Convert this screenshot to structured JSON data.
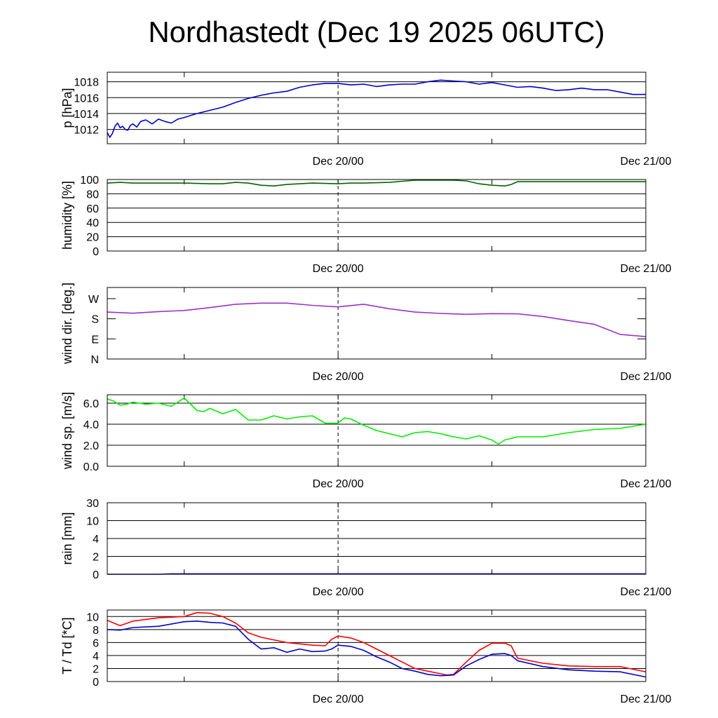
{
  "title": "Nordhastedt (Dec 19 2025 06UTC)",
  "x_axis": {
    "start": "Dec 19 06UTC",
    "end": "Dec 21/00",
    "marker": "Dec 20/00",
    "tick_labels": [
      {
        "label": "Dec 20/00",
        "hours": 18
      },
      {
        "label": "Dec 21/00",
        "hours": 42
      }
    ],
    "minor_tick_hours": [
      6,
      18,
      30,
      42
    ]
  },
  "chart_data": [
    {
      "type": "line",
      "ylabel": "p [hPa]",
      "ylim": [
        1010.2,
        1019.2
      ],
      "y_ticks": [
        1012,
        1014,
        1016,
        1018
      ],
      "grid": true,
      "series": [
        {
          "color": "#0000cc",
          "x": [
            0,
            0.2,
            0.4,
            0.6,
            0.8,
            1.0,
            1.2,
            1.4,
            1.6,
            1.8,
            2.0,
            2.3,
            2.6,
            3.0,
            3.5,
            4.0,
            4.5,
            5.0,
            5.5,
            6.0,
            7.0,
            8.0,
            9.0,
            10.0,
            11.0,
            12.0,
            13.0,
            14.0,
            15.0,
            16.0,
            17.0,
            18.0,
            19.0,
            20.0,
            21.0,
            22.0,
            23.0,
            24.0,
            25.0,
            26.0,
            27.0,
            28.0,
            29.0,
            30.0,
            31.0,
            32.0,
            33.0,
            34.0,
            35.0,
            36.0,
            37.0,
            38.0,
            39.0,
            40.0,
            41.0,
            42.0
          ],
          "values": [
            1011.6,
            1011.0,
            1011.5,
            1012.4,
            1012.8,
            1012.2,
            1012.4,
            1012.0,
            1011.9,
            1012.5,
            1012.7,
            1012.3,
            1013.0,
            1013.2,
            1012.7,
            1013.3,
            1013.0,
            1012.8,
            1013.3,
            1013.5,
            1014.0,
            1014.4,
            1014.8,
            1015.4,
            1015.9,
            1016.3,
            1016.6,
            1016.8,
            1017.3,
            1017.6,
            1017.8,
            1017.8,
            1017.6,
            1017.7,
            1017.4,
            1017.6,
            1017.7,
            1017.7,
            1018.0,
            1018.2,
            1018.1,
            1018.0,
            1017.7,
            1017.9,
            1017.6,
            1017.3,
            1017.4,
            1017.2,
            1016.9,
            1017.0,
            1017.2,
            1017.0,
            1017.0,
            1016.7,
            1016.4,
            1016.4
          ]
        }
      ]
    },
    {
      "type": "line",
      "ylabel": "humidity [%]",
      "ylim": [
        0,
        100
      ],
      "y_ticks": [
        0,
        20,
        40,
        60,
        80,
        100
      ],
      "grid": true,
      "series": [
        {
          "color": "#006600",
          "x": [
            0,
            1.0,
            2.0,
            4.0,
            6.0,
            8.0,
            9.0,
            10.0,
            11.0,
            12.0,
            13.0,
            14.0,
            16.0,
            18.0,
            19.0,
            20.0,
            22.0,
            24.0,
            25.0,
            26.0,
            27.0,
            28.0,
            29.0,
            30.0,
            31.0,
            31.5,
            32.0,
            34.0,
            36.0,
            38.0,
            40.0,
            42.0
          ],
          "values": [
            95,
            96,
            95,
            95,
            95,
            94,
            94,
            96,
            95,
            92,
            91,
            93,
            95,
            94,
            95,
            95,
            96,
            99,
            99,
            99,
            99,
            98,
            94,
            92,
            91,
            93,
            97,
            97,
            97,
            97,
            97,
            97
          ]
        }
      ]
    },
    {
      "type": "line",
      "ylabel": "wind dir. [deg.]",
      "ylim": [
        0,
        320
      ],
      "y_ticks": [
        0,
        90,
        180,
        270
      ],
      "y_tick_labels": [
        "N",
        "E",
        "S",
        "W"
      ],
      "grid": false,
      "series": [
        {
          "color": "#9933cc",
          "x": [
            0,
            2.0,
            4.0,
            6.0,
            8.0,
            10.0,
            12.0,
            14.0,
            16.0,
            18.0,
            20.0,
            22.0,
            24.0,
            26.0,
            28.0,
            30.0,
            32.0,
            34.0,
            36.0,
            38.0,
            40.0,
            42.0
          ],
          "values": [
            210,
            205,
            212,
            217,
            230,
            245,
            250,
            250,
            240,
            233,
            245,
            225,
            210,
            204,
            200,
            203,
            202,
            190,
            172,
            155,
            110,
            100
          ]
        }
      ]
    },
    {
      "type": "line",
      "ylabel": "wind sp. [m/s]",
      "ylim": [
        0,
        6.8
      ],
      "y_ticks": [
        0.0,
        2.0,
        4.0,
        6.0
      ],
      "grid": true,
      "series": [
        {
          "color": "#00ee00",
          "x": [
            0,
            0.5,
            1.0,
            1.5,
            2.0,
            3.0,
            4.0,
            5.0,
            5.5,
            6.0,
            7.0,
            7.5,
            8.0,
            9.0,
            10.0,
            11.0,
            12.0,
            13.0,
            14.0,
            15.0,
            16.0,
            17.0,
            18.0,
            18.5,
            19.0,
            20.0,
            21.0,
            22.0,
            23.0,
            24.0,
            25.0,
            26.0,
            27.0,
            28.0,
            29.0,
            30.0,
            30.5,
            31.0,
            32.0,
            34.0,
            36.0,
            38.0,
            40.0,
            42.0
          ],
          "values": [
            6.4,
            6.2,
            5.8,
            5.9,
            6.1,
            5.9,
            6.0,
            5.7,
            6.1,
            6.5,
            5.3,
            5.2,
            5.5,
            5.0,
            5.4,
            4.4,
            4.4,
            4.8,
            4.5,
            4.7,
            4.8,
            4.1,
            4.1,
            4.6,
            4.5,
            3.9,
            3.4,
            3.1,
            2.8,
            3.2,
            3.3,
            3.1,
            2.8,
            2.6,
            2.9,
            2.5,
            2.1,
            2.5,
            2.8,
            2.8,
            3.2,
            3.5,
            3.6,
            4.0
          ]
        }
      ]
    },
    {
      "type": "area",
      "ylabel": "rain [mm]",
      "scale": "piecewise",
      "ylim": [
        0,
        30
      ],
      "y_ticks": [
        0,
        2,
        4,
        10,
        30
      ],
      "grid": true,
      "series": [
        {
          "color": "#0000cc",
          "x": [
            0,
            4.0,
            5.0,
            42.0
          ],
          "values": [
            0.0,
            0.0,
            0.05,
            0.05
          ]
        }
      ]
    },
    {
      "type": "line",
      "ylabel": "T / Td [*C]",
      "ylim": [
        0,
        11
      ],
      "y_ticks": [
        0,
        2,
        4,
        6,
        8,
        10
      ],
      "grid": true,
      "series": [
        {
          "color": "#ff0000",
          "x": [
            0,
            1.0,
            2.0,
            4.0,
            6.0,
            7.0,
            8.0,
            9.0,
            10.0,
            11.0,
            12.0,
            14.0,
            16.0,
            17.0,
            17.5,
            18.0,
            19.0,
            20.0,
            21.0,
            22.0,
            23.0,
            24.0,
            25.0,
            26.0,
            26.5,
            27.0,
            28.0,
            29.0,
            30.0,
            31.0,
            31.5,
            32.0,
            34.0,
            36.0,
            38.0,
            40.0,
            42.0
          ],
          "values": [
            9.4,
            8.6,
            9.3,
            9.8,
            10.0,
            10.6,
            10.5,
            10.0,
            9.0,
            7.5,
            6.8,
            6.0,
            5.6,
            5.5,
            6.5,
            7.0,
            6.7,
            6.0,
            5.0,
            4.0,
            3.0,
            2.0,
            1.6,
            1.2,
            1.0,
            1.1,
            3.0,
            4.8,
            5.9,
            5.9,
            5.5,
            3.6,
            2.8,
            2.4,
            2.3,
            2.3,
            1.5
          ]
        },
        {
          "color": "#0000cc",
          "x": [
            0,
            1.0,
            2.0,
            4.0,
            6.0,
            7.0,
            8.0,
            9.0,
            10.0,
            11.0,
            12.0,
            13.0,
            14.0,
            15.0,
            16.0,
            17.0,
            17.5,
            18.0,
            19.0,
            20.0,
            21.0,
            22.0,
            23.0,
            24.0,
            25.0,
            26.0,
            27.0,
            28.0,
            29.0,
            30.0,
            31.0,
            31.5,
            32.0,
            34.0,
            36.0,
            38.0,
            40.0,
            42.0
          ],
          "values": [
            8.0,
            7.9,
            8.3,
            8.5,
            9.2,
            9.3,
            9.1,
            9.0,
            8.5,
            6.5,
            5.0,
            5.2,
            4.5,
            5.0,
            4.6,
            4.7,
            5.0,
            5.6,
            5.4,
            4.8,
            3.8,
            3.0,
            2.0,
            1.6,
            1.1,
            0.9,
            1.0,
            2.4,
            3.4,
            4.2,
            4.3,
            4.0,
            3.2,
            2.3,
            1.8,
            1.6,
            1.5,
            0.7
          ]
        }
      ]
    }
  ]
}
